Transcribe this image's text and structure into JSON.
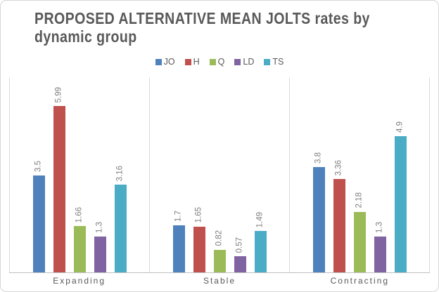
{
  "title": "PROPOSED ALTERNATIVE MEAN JOLTS rates by dynamic group",
  "colors": {
    "title_text": "#595959",
    "data_label_text": "#7f7f7f",
    "category_text": "#595959",
    "gridline": "#d9d9d9",
    "axis_line": "#bfbfbf",
    "frame_border": "#d6d6d6",
    "background": "#ffffff"
  },
  "chart_data": {
    "type": "bar",
    "title": "PROPOSED ALTERNATIVE MEAN JOLTS rates by dynamic group",
    "categories": [
      "Expanding",
      "Stable",
      "Contracting"
    ],
    "series": [
      {
        "name": "JO",
        "color": "#4F81BD",
        "values": [
          3.5,
          1.7,
          3.8
        ]
      },
      {
        "name": "H",
        "color": "#C0504D",
        "values": [
          5.99,
          1.65,
          3.36
        ]
      },
      {
        "name": "Q",
        "color": "#9BBB59",
        "values": [
          1.66,
          0.82,
          2.18
        ]
      },
      {
        "name": "LD",
        "color": "#8064A2",
        "values": [
          1.3,
          0.57,
          1.3
        ]
      },
      {
        "name": "TS",
        "color": "#4BACC6",
        "values": [
          3.16,
          1.49,
          4.9
        ]
      }
    ],
    "data_labels": [
      "3.5",
      "5.99",
      "1.66",
      "1.3",
      "3.16",
      "1.7",
      "1.65",
      "0.82",
      "0.57",
      "1.49",
      "3.8",
      "3.36",
      "2.18",
      "1.3",
      "4.9"
    ],
    "xlabel": "",
    "ylabel": "",
    "ylim": [
      0,
      7
    ],
    "y_axis_labels_visible": false,
    "grid": "vertical category separators only",
    "legend_position": "top-center",
    "data_label_style": "rotated 90deg, above bar"
  }
}
